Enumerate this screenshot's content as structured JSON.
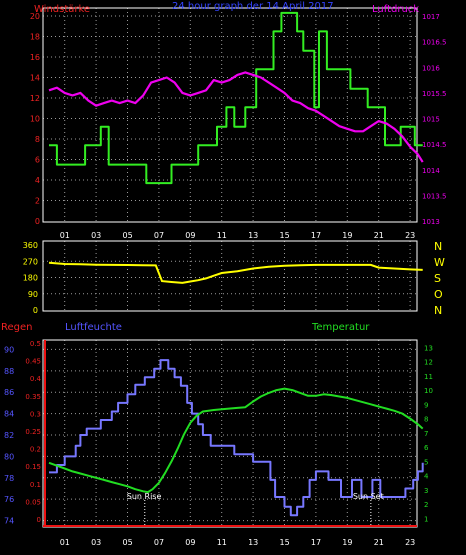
{
  "colors": {
    "wind": "#33ee22",
    "pressure": "#ee00ee",
    "direction": "#ffff00",
    "rain": "#ee1111",
    "humidity": "#7777ff",
    "temperature": "#22dd22",
    "frame": "#ffffff",
    "grid": "#9a9a9a",
    "yellowText": "#ffff00",
    "redText": "#ee2222",
    "blueText": "#5555ff"
  },
  "chart_data": [
    {
      "type": "line",
      "title": "24 hour graph der  14 April 2017",
      "left_axis_title": "Windstärke",
      "right_axis_title": "Luftdruck",
      "x_ticks": [
        "01",
        "03",
        "05",
        "07",
        "09",
        "11",
        "13",
        "15",
        "17",
        "19",
        "21",
        "23"
      ],
      "y_left_ticks": [
        "0",
        "2",
        "4",
        "6",
        "8",
        "10",
        "12",
        "14",
        "16",
        "18",
        "20"
      ],
      "y_left_range": [
        0,
        20
      ],
      "y_right_ticks": [
        "1013",
        "1013.5",
        "1014",
        "1014.5",
        "1015",
        "1015.5",
        "1016",
        "1016.5",
        "1017"
      ],
      "y_right_range": [
        1013,
        1017
      ],
      "series": [
        {
          "key": "wind",
          "axis": "left",
          "step": true,
          "points": [
            [
              0,
              7.4
            ],
            [
              0.5,
              5.5
            ],
            [
              2.3,
              7.4
            ],
            [
              3.3,
              9.2
            ],
            [
              3.8,
              5.5
            ],
            [
              6.2,
              3.7
            ],
            [
              7.8,
              5.5
            ],
            [
              9.5,
              7.4
            ],
            [
              10.7,
              9.2
            ],
            [
              11.3,
              11.1
            ],
            [
              11.8,
              9.2
            ],
            [
              12.5,
              11.1
            ],
            [
              13.2,
              14.8
            ],
            [
              14.3,
              18.5
            ],
            [
              14.8,
              20.3
            ],
            [
              15.8,
              18.5
            ],
            [
              16.2,
              16.6
            ],
            [
              16.9,
              11.1
            ],
            [
              17.2,
              18.5
            ],
            [
              17.7,
              14.8
            ],
            [
              19.2,
              12.9
            ],
            [
              20.3,
              11.1
            ],
            [
              21.4,
              7.4
            ],
            [
              22.4,
              9.2
            ],
            [
              23.3,
              7.4
            ],
            [
              23.8,
              7.4
            ]
          ]
        },
        {
          "key": "pressure",
          "axis": "right",
          "step": false,
          "points": [
            [
              0,
              1015.55
            ],
            [
              0.5,
              1015.6
            ],
            [
              1,
              1015.5
            ],
            [
              1.5,
              1015.45
            ],
            [
              2,
              1015.5
            ],
            [
              2.5,
              1015.35
            ],
            [
              3,
              1015.25
            ],
            [
              3.5,
              1015.3
            ],
            [
              4,
              1015.35
            ],
            [
              4.5,
              1015.3
            ],
            [
              5,
              1015.35
            ],
            [
              5.5,
              1015.3
            ],
            [
              6,
              1015.45
            ],
            [
              6.5,
              1015.7
            ],
            [
              7,
              1015.75
            ],
            [
              7.5,
              1015.8
            ],
            [
              8,
              1015.7
            ],
            [
              8.5,
              1015.5
            ],
            [
              9,
              1015.45
            ],
            [
              9.5,
              1015.5
            ],
            [
              10,
              1015.55
            ],
            [
              10.5,
              1015.75
            ],
            [
              11,
              1015.7
            ],
            [
              11.5,
              1015.75
            ],
            [
              12,
              1015.85
            ],
            [
              12.5,
              1015.9
            ],
            [
              13,
              1015.85
            ],
            [
              13.5,
              1015.8
            ],
            [
              14,
              1015.7
            ],
            [
              14.5,
              1015.6
            ],
            [
              15,
              1015.5
            ],
            [
              15.5,
              1015.35
            ],
            [
              16,
              1015.3
            ],
            [
              16.5,
              1015.2
            ],
            [
              17,
              1015.15
            ],
            [
              17.5,
              1015.05
            ],
            [
              18,
              1014.95
            ],
            [
              18.5,
              1014.85
            ],
            [
              19,
              1014.8
            ],
            [
              19.5,
              1014.75
            ],
            [
              20,
              1014.75
            ],
            [
              20.5,
              1014.85
            ],
            [
              21,
              1014.95
            ],
            [
              21.5,
              1014.9
            ],
            [
              22,
              1014.8
            ],
            [
              22.5,
              1014.65
            ],
            [
              23,
              1014.45
            ],
            [
              23.5,
              1014.3
            ],
            [
              23.8,
              1014.15
            ]
          ]
        }
      ]
    },
    {
      "type": "line",
      "series_key": "direction",
      "y_ticks": [
        "360",
        "270",
        "180",
        "90",
        "0"
      ],
      "y_range": [
        0,
        360
      ],
      "compass": [
        "N",
        "W",
        "S",
        "O",
        "N"
      ],
      "points": [
        [
          0,
          262
        ],
        [
          1,
          255
        ],
        [
          2,
          253
        ],
        [
          3,
          251
        ],
        [
          4,
          250
        ],
        [
          5,
          249
        ],
        [
          6,
          248
        ],
        [
          6.8,
          247
        ],
        [
          7.2,
          160
        ],
        [
          7.8,
          155
        ],
        [
          8.5,
          150
        ],
        [
          9,
          158
        ],
        [
          9.5,
          165
        ],
        [
          10,
          175
        ],
        [
          10.5,
          190
        ],
        [
          11,
          205
        ],
        [
          11.5,
          210
        ],
        [
          12,
          215
        ],
        [
          13,
          230
        ],
        [
          14,
          240
        ],
        [
          15,
          245
        ],
        [
          16,
          248
        ],
        [
          17,
          250
        ],
        [
          18,
          250
        ],
        [
          19,
          250
        ],
        [
          20,
          250
        ],
        [
          20.5,
          250
        ],
        [
          21,
          235
        ],
        [
          22,
          230
        ],
        [
          23,
          225
        ],
        [
          23.8,
          222
        ]
      ]
    },
    {
      "type": "line",
      "left_titles": [
        "Regen",
        "Luftfeuchte"
      ],
      "right_title": "Temperatur",
      "rain_ticks": [
        "0",
        "0.05",
        "0.1",
        "0.15",
        "0.2",
        "0.25",
        "0.3",
        "0.35",
        "0.4",
        "0.45",
        "0.5"
      ],
      "rain_range": [
        0,
        0.5
      ],
      "humidity_ticks": [
        "74",
        "76",
        "78",
        "80",
        "82",
        "84",
        "86",
        "88",
        "90"
      ],
      "humidity_range": [
        73.4,
        90.6
      ],
      "temperature_ticks": [
        "1",
        "2",
        "3",
        "4",
        "5",
        "6",
        "7",
        "8",
        "9",
        "10",
        "11",
        "12",
        "13"
      ],
      "temperature_range": [
        0.4,
        13.3
      ],
      "annotations": [
        {
          "text": "Sun Rise",
          "x": 6.1
        },
        {
          "text": "Sun Set",
          "x": 20.5
        }
      ],
      "series": [
        {
          "key": "humidity",
          "step": true,
          "points": [
            [
              0,
              78.5
            ],
            [
              0.5,
              79.2
            ],
            [
              1,
              80
            ],
            [
              1.7,
              81
            ],
            [
              2,
              82
            ],
            [
              2.4,
              82.6
            ],
            [
              3.3,
              83.4
            ],
            [
              4,
              84.2
            ],
            [
              4.4,
              85
            ],
            [
              5,
              85.8
            ],
            [
              5.5,
              86.7
            ],
            [
              6.1,
              87.4
            ],
            [
              6.7,
              88.2
            ],
            [
              7.1,
              89
            ],
            [
              7.6,
              88.2
            ],
            [
              8,
              87.4
            ],
            [
              8.4,
              86.6
            ],
            [
              8.8,
              85
            ],
            [
              9.1,
              84
            ],
            [
              9.5,
              83
            ],
            [
              9.8,
              82
            ],
            [
              10.3,
              81
            ],
            [
              11.8,
              80.2
            ],
            [
              13,
              79.5
            ],
            [
              14.1,
              77.8
            ],
            [
              14.4,
              76.2
            ],
            [
              15,
              75.3
            ],
            [
              15.4,
              74.5
            ],
            [
              15.8,
              75.3
            ],
            [
              16.2,
              76.2
            ],
            [
              16.6,
              77.8
            ],
            [
              17,
              78.6
            ],
            [
              17.8,
              77.8
            ],
            [
              18.6,
              76.2
            ],
            [
              19.3,
              77.8
            ],
            [
              19.9,
              76.2
            ],
            [
              20.6,
              77.8
            ],
            [
              21.1,
              76.2
            ],
            [
              22.2,
              76.2
            ],
            [
              22.7,
              77
            ],
            [
              23.2,
              77.8
            ],
            [
              23.5,
              78.6
            ],
            [
              23.8,
              79.4
            ]
          ]
        },
        {
          "key": "temperature",
          "step": false,
          "points": [
            [
              0,
              4.9
            ],
            [
              0.5,
              4.7
            ],
            [
              1,
              4.5
            ],
            [
              1.5,
              4.3
            ],
            [
              2,
              4.15
            ],
            [
              2.5,
              4.0
            ],
            [
              3,
              3.85
            ],
            [
              3.5,
              3.7
            ],
            [
              4,
              3.55
            ],
            [
              4.5,
              3.4
            ],
            [
              5,
              3.25
            ],
            [
              5.5,
              3.05
            ],
            [
              6,
              2.9
            ],
            [
              6.3,
              2.85
            ],
            [
              6.6,
              3.05
            ],
            [
              7,
              3.5
            ],
            [
              7.4,
              4.2
            ],
            [
              7.8,
              5.0
            ],
            [
              8.2,
              5.9
            ],
            [
              8.6,
              6.9
            ],
            [
              9,
              7.7
            ],
            [
              9.4,
              8.2
            ],
            [
              9.8,
              8.5
            ],
            [
              10.5,
              8.6
            ],
            [
              11,
              8.65
            ],
            [
              12,
              8.75
            ],
            [
              12.5,
              8.8
            ],
            [
              13,
              9.2
            ],
            [
              13.5,
              9.55
            ],
            [
              14,
              9.8
            ],
            [
              14.5,
              10.0
            ],
            [
              15,
              10.1
            ],
            [
              15.5,
              10.0
            ],
            [
              16,
              9.8
            ],
            [
              16.5,
              9.6
            ],
            [
              17,
              9.6
            ],
            [
              17.5,
              9.7
            ],
            [
              18,
              9.65
            ],
            [
              18.5,
              9.55
            ],
            [
              19,
              9.45
            ],
            [
              19.5,
              9.3
            ],
            [
              20,
              9.15
            ],
            [
              20.5,
              9.0
            ],
            [
              21,
              8.85
            ],
            [
              21.5,
              8.7
            ],
            [
              22,
              8.55
            ],
            [
              22.5,
              8.35
            ],
            [
              23,
              8.0
            ],
            [
              23.5,
              7.6
            ],
            [
              23.8,
              7.3
            ]
          ]
        }
      ]
    }
  ]
}
